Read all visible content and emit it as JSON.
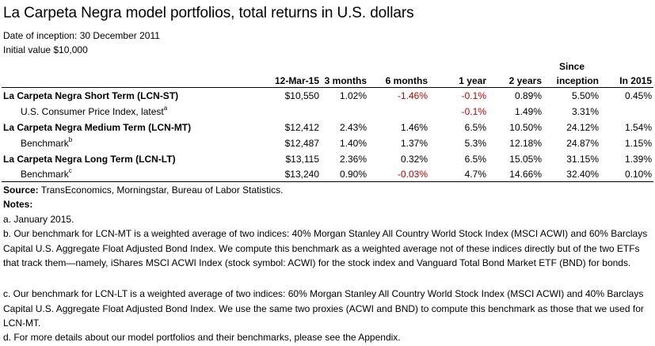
{
  "title": "La Carpeta Negra model portfolios, total returns in U.S. dollars",
  "inception": "Date of inception: 30 December 2011",
  "initial_value": "Initial value $10,000",
  "headers": {
    "col0": "",
    "col1": "12-Mar-15",
    "col2": "3 months",
    "col3": "6 months",
    "col4": "1 year",
    "col5": "2 years",
    "col6_line1": "Since",
    "col6_line2": "inception",
    "col7": "In 2015"
  },
  "rows": [
    {
      "label": "La Carpeta Negra Short Term (LCN-ST)",
      "sup": "",
      "v1": "$10,550",
      "v2": "1.02%",
      "v3": "-1.46%",
      "v4": "-0.1%",
      "v5": "0.89%",
      "v6": "5.50%",
      "v7": "0.45%"
    },
    {
      "label": "U.S. Consumer Price Index, latest",
      "sup": "a",
      "v1": "",
      "v2": "",
      "v3": "",
      "v4": "-0.1%",
      "v5": "1.49%",
      "v6": "3.31%",
      "v7": ""
    },
    {
      "label": "La Carpeta Negra Medium Term (LCN-MT)",
      "sup": "",
      "v1": "$12,412",
      "v2": "2.43%",
      "v3": "1.46%",
      "v4": "6.5%",
      "v5": "10.50%",
      "v6": "24.12%",
      "v7": "1.54%"
    },
    {
      "label": "Benchmark",
      "sup": "b",
      "v1": "$12,487",
      "v2": "1.40%",
      "v3": "1.37%",
      "v4": "5.3%",
      "v5": "12.18%",
      "v6": "24.87%",
      "v7": "1.15%"
    },
    {
      "label": "La Carpeta Negra Long Term (LCN-LT)",
      "sup": "",
      "v1": "$13,115",
      "v2": "2.36%",
      "v3": "0.32%",
      "v4": "6.5%",
      "v5": "15.05%",
      "v6": "31.15%",
      "v7": "1.39%"
    },
    {
      "label": "Benchmark",
      "sup": "c",
      "v1": "$13,240",
      "v2": "0.90%",
      "v3": "-0.03%",
      "v4": "4.7%",
      "v5": "14.66%",
      "v6": "32.40%",
      "v7": "0.10%"
    }
  ],
  "source_label": "Source:",
  "source_text": " TransEconomics, Morningstar, Bureau of Labor Statistics.",
  "notes_heading": "Notes:",
  "notes": [
    "a. January 2015.",
    "b. Our benchmark for LCN-MT is a weighted average of two indices: 40% Morgan Stanley All Country World Stock Index (MSCI ACWI) and 60% Barclays Capital U.S. Aggregate Float Adjusted Bond Index. We compute this benchmark as a weighted average not of these indices directly but of the two ETFs that track them—namely, iShares MSCI ACWI Index (stock symbol: ACWI) for the stock index and Vanguard Total Bond Market ETF (BND) for bonds.",
    "c. Our benchmark for LCN-LT is a weighted average of two indices: 60% Morgan Stanley All Country World Stock Index (MSCI ACWI) and 40% Barclays Capital U.S. Aggregate Float Adjusted Bond Index. We use the same two proxies (ACWI and BND) to compute this benchmark as those that we used for LCN-MT.",
    "d. For more details about our model portfolios and their benchmarks, please see the Appendix."
  ],
  "colors": {
    "negative": "#c00000",
    "text": "#000000"
  }
}
